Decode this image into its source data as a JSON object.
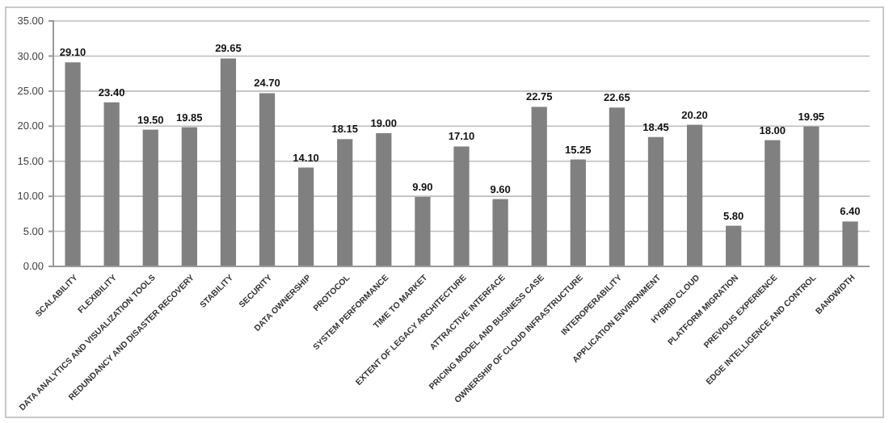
{
  "chart_data": {
    "type": "bar",
    "categories": [
      "SCALABILITY",
      "FLEXIBILITY",
      "DATA ANALYTICS AND VISUALIZATION TOOLS",
      "REDUNDANCY AND DISASTER RECOVERY",
      "STABILITY",
      "SECURITY",
      "DATA OWNERSHIP",
      "PROTOCOL",
      "SYSTEM PERFORMANCE",
      "TIME TO MARKET",
      "EXTENT OF LEGACY ARCHITECTURE",
      "ATTRACTIVE INTERFACE",
      "PRICING MODEL AND BUSINESS CASE",
      "OWNERSHIP OF CLOUD INFRASTRUCTURE",
      "INTEROPERABILITY",
      "APPLICATION ENVIRONMENT",
      "HYBRID CLOUD",
      "PLATFORM MIGRATION",
      "PREVIOUS EXPERIENCE",
      "EDGE INTELLIGENCE AND CONTROL",
      "BANDWIDTH"
    ],
    "values": [
      29.1,
      23.4,
      19.5,
      19.85,
      29.65,
      24.7,
      14.1,
      18.15,
      19.0,
      9.9,
      17.1,
      9.6,
      22.75,
      15.25,
      22.65,
      18.45,
      20.2,
      5.8,
      18.0,
      19.95,
      6.4
    ],
    "value_labels": [
      "29.10",
      "23.40",
      "19.50",
      "19.85",
      "29.65",
      "24.70",
      "14.10",
      "18.15",
      "19.00",
      "9.90",
      "17.10",
      "9.60",
      "22.75",
      "15.25",
      "22.65",
      "18.45",
      "20.20",
      "5.80",
      "18.00",
      "19.95",
      "6.40"
    ],
    "color": "#808080",
    "ylim": [
      0,
      35
    ],
    "yticks": [
      {
        "value": 0,
        "label": "0.00"
      },
      {
        "value": 5,
        "label": "5.00"
      },
      {
        "value": 10,
        "label": "10.00"
      },
      {
        "value": 15,
        "label": "15.00"
      },
      {
        "value": 20,
        "label": "20.00"
      },
      {
        "value": 25,
        "label": "25.00"
      },
      {
        "value": 30,
        "label": "30.00"
      },
      {
        "value": 35,
        "label": "35.00"
      }
    ],
    "grid": "y"
  }
}
